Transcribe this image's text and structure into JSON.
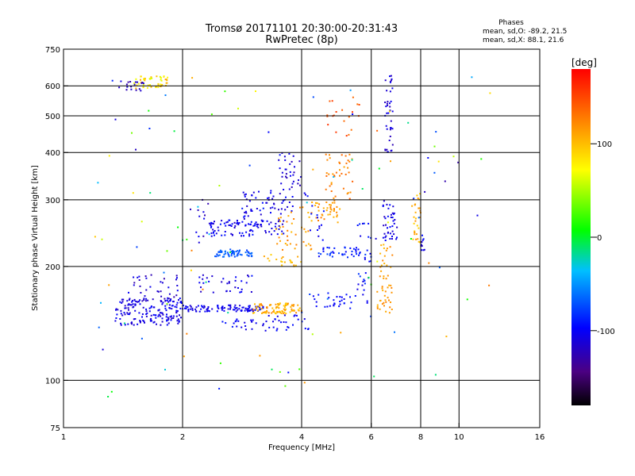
{
  "chart_data": {
    "type": "scatter",
    "title": "Tromsø 20171101 20:30:00-20:31:43",
    "subtitle": "RwPretec (8p)",
    "xlabel": "Frequency [MHz]",
    "ylabel": "Stationary phase Virtual Height [km]",
    "x_scale": "log",
    "y_scale": "log",
    "xlim": [
      1,
      16
    ],
    "ylim": [
      75,
      750
    ],
    "x_ticks": [
      1,
      2,
      4,
      6,
      8,
      10,
      16
    ],
    "y_ticks": [
      75,
      100,
      200,
      300,
      400,
      500,
      600,
      750
    ],
    "x_grid": [
      2,
      4,
      6,
      8,
      10
    ],
    "y_grid": [
      100,
      200,
      300,
      400,
      500,
      600
    ],
    "grid": true,
    "stats": {
      "heading": "Phases",
      "line_o": "mean, sd,O: -89.2, 21.5",
      "line_x": "mean, sd,X:  88.1, 21.6"
    },
    "colorbar": {
      "label": "[deg]",
      "min": -180,
      "max": 180,
      "ticks": [
        -100,
        0,
        100
      ],
      "tick_labels": [
        "-100",
        "0",
        "100"
      ]
    },
    "clusters": [
      {
        "f0": 1.5,
        "f1": 1.85,
        "h0": 590,
        "h1": 640,
        "phase": [
          60,
          110
        ],
        "n": 50
      },
      {
        "f0": 1.38,
        "f1": 1.6,
        "h0": 580,
        "h1": 620,
        "phase": [
          -130,
          -100
        ],
        "n": 18
      },
      {
        "f0": 1.35,
        "f1": 2.0,
        "h0": 140,
        "h1": 165,
        "phase": [
          -120,
          -95
        ],
        "n": 170
      },
      {
        "f0": 1.5,
        "f1": 1.95,
        "h0": 160,
        "h1": 190,
        "phase": [
          -130,
          -100
        ],
        "n": 40
      },
      {
        "f0": 2.0,
        "f1": 3.2,
        "h0": 152,
        "h1": 158,
        "phase": [
          -115,
          -95
        ],
        "n": 100
      },
      {
        "f0": 2.2,
        "f1": 3.0,
        "h0": 170,
        "h1": 190,
        "phase": [
          -120,
          -95
        ],
        "n": 30
      },
      {
        "f0": 2.5,
        "f1": 3.2,
        "h0": 135,
        "h1": 145,
        "phase": [
          -110,
          -90
        ],
        "n": 20
      },
      {
        "f0": 3.0,
        "f1": 4.0,
        "h0": 150,
        "h1": 160,
        "phase": [
          90,
          130
        ],
        "n": 90
      },
      {
        "f0": 3.2,
        "f1": 4.2,
        "h0": 135,
        "h1": 150,
        "phase": [
          -110,
          -90
        ],
        "n": 30
      },
      {
        "f0": 4.2,
        "f1": 5.5,
        "h0": 155,
        "h1": 170,
        "phase": [
          -110,
          -90
        ],
        "n": 30
      },
      {
        "f0": 2.4,
        "f1": 3.0,
        "h0": 212,
        "h1": 222,
        "phase": [
          -80,
          -60
        ],
        "n": 60
      },
      {
        "f0": 2.3,
        "f1": 3.6,
        "h0": 240,
        "h1": 265,
        "phase": [
          -120,
          -90
        ],
        "n": 100
      },
      {
        "f0": 2.8,
        "f1": 3.8,
        "h0": 265,
        "h1": 320,
        "phase": [
          -120,
          -90
        ],
        "n": 60
      },
      {
        "f0": 3.5,
        "f1": 4.0,
        "h0": 320,
        "h1": 400,
        "phase": [
          -125,
          -100
        ],
        "n": 30
      },
      {
        "f0": 2.0,
        "f1": 2.4,
        "h0": 230,
        "h1": 300,
        "phase": [
          -130,
          -100
        ],
        "n": 15
      },
      {
        "f0": 3.2,
        "f1": 4.0,
        "h0": 200,
        "h1": 215,
        "phase": [
          90,
          120
        ],
        "n": 20
      },
      {
        "f0": 3.4,
        "f1": 4.3,
        "h0": 220,
        "h1": 290,
        "phase": [
          100,
          130
        ],
        "n": 40
      },
      {
        "f0": 4.2,
        "f1": 5.0,
        "h0": 260,
        "h1": 300,
        "phase": [
          100,
          130
        ],
        "n": 40
      },
      {
        "f0": 4.6,
        "f1": 5.4,
        "h0": 300,
        "h1": 400,
        "phase": [
          110,
          140
        ],
        "n": 40
      },
      {
        "f0": 4.4,
        "f1": 5.8,
        "h0": 210,
        "h1": 225,
        "phase": [
          -100,
          -75
        ],
        "n": 40
      },
      {
        "f0": 5.5,
        "f1": 6.0,
        "h0": 160,
        "h1": 260,
        "phase": [
          -110,
          -80
        ],
        "n": 30
      },
      {
        "f0": 4.0,
        "f1": 4.6,
        "h0": 230,
        "h1": 320,
        "phase": [
          -110,
          -90
        ],
        "n": 15
      },
      {
        "f0": 4.6,
        "f1": 5.6,
        "h0": 440,
        "h1": 560,
        "phase": [
          130,
          160
        ],
        "n": 20
      },
      {
        "f0": 6.2,
        "f1": 6.8,
        "h0": 150,
        "h1": 230,
        "phase": [
          100,
          125
        ],
        "n": 50
      },
      {
        "f0": 6.4,
        "f1": 7.0,
        "h0": 230,
        "h1": 300,
        "phase": [
          -120,
          -90
        ],
        "n": 40
      },
      {
        "f0": 6.5,
        "f1": 6.8,
        "h0": 400,
        "h1": 640,
        "phase": [
          -125,
          -100
        ],
        "n": 40
      },
      {
        "f0": 7.6,
        "f1": 8.0,
        "h0": 230,
        "h1": 320,
        "phase": [
          90,
          120
        ],
        "n": 30
      },
      {
        "f0": 8.0,
        "f1": 8.2,
        "h0": 220,
        "h1": 250,
        "phase": [
          -120,
          -95
        ],
        "n": 10
      },
      {
        "f0": 1.2,
        "f1": 12.0,
        "h0": 90,
        "h1": 650,
        "phase": [
          -130,
          140
        ],
        "n": 110
      }
    ]
  }
}
